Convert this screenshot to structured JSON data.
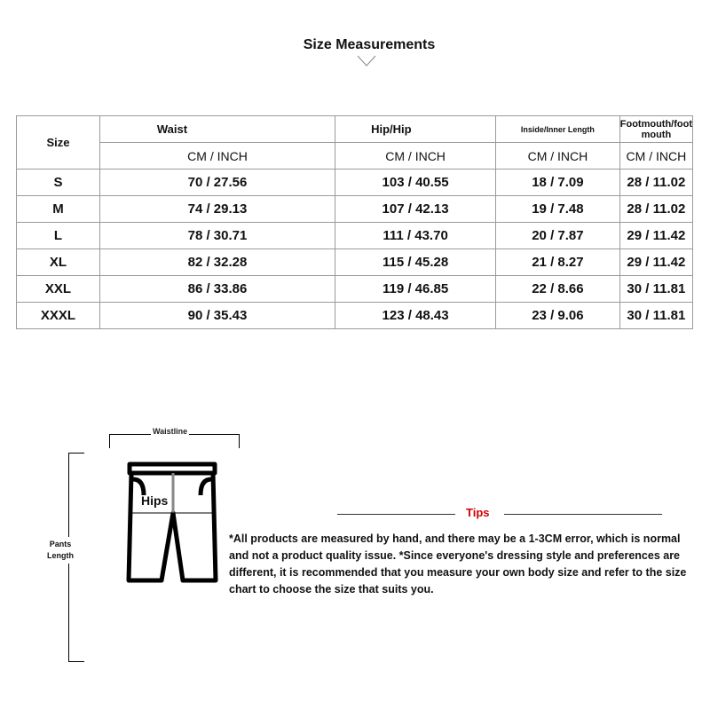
{
  "title": "Size Measurements",
  "table": {
    "size_header": "Size",
    "columns": [
      "Waist",
      "Hip/Hip",
      "Inside/Inner Length",
      "Footmouth/foot mouth"
    ],
    "unit": "CM / INCH",
    "rows": [
      [
        "S",
        "70 / 27.56",
        "103 / 40.55",
        "18 / 7.09",
        "28 / 11.02"
      ],
      [
        "M",
        "74 / 29.13",
        "107 / 42.13",
        "19 / 7.48",
        "28 / 11.02"
      ],
      [
        "L",
        "78 / 30.71",
        "111 / 43.70",
        "20 / 7.87",
        "29 / 11.42"
      ],
      [
        "XL",
        "82 / 32.28",
        "115 / 45.28",
        "21 / 8.27",
        "29 / 11.42"
      ],
      [
        "XXL",
        "86 / 33.86",
        "119 / 46.85",
        "22 / 8.66",
        "30 / 11.81"
      ],
      [
        "XXXL",
        "90 / 35.43",
        "123 / 48.43",
        "23 / 9.06",
        "30 / 11.81"
      ]
    ]
  },
  "diagram": {
    "waistline": "Waistline",
    "hips": "Hips",
    "pants_label_1": "Pants",
    "pants_label_2": "Length"
  },
  "tips": {
    "label": "Tips",
    "color": "#d00000",
    "text": "*All products are measured by hand, and there may be a 1-3CM error, which is normal and not a product quality issue. *Since everyone's dressing style and preferences are different, it is recommended that you measure your own body size and refer to the size chart to choose the size that suits you."
  }
}
